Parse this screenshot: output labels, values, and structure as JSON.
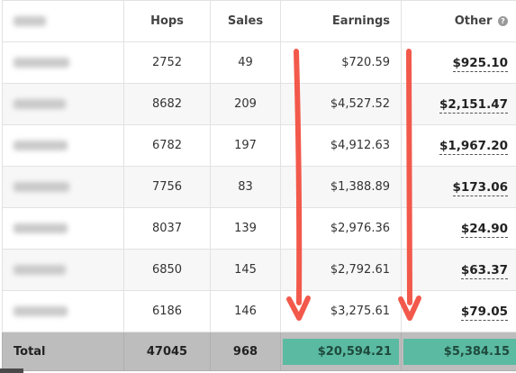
{
  "table": {
    "headers": {
      "name": "",
      "hops": "Hops",
      "sales": "Sales",
      "earnings": "Earnings",
      "other": "Other"
    },
    "rows": [
      {
        "hops": "2752",
        "sales": "49",
        "earnings": "$720.59",
        "other": "$925.10"
      },
      {
        "hops": "8682",
        "sales": "209",
        "earnings": "$4,527.52",
        "other": "$2,151.47"
      },
      {
        "hops": "6782",
        "sales": "197",
        "earnings": "$4,912.63",
        "other": "$1,967.20"
      },
      {
        "hops": "7756",
        "sales": "83",
        "earnings": "$1,388.89",
        "other": "$173.06"
      },
      {
        "hops": "8037",
        "sales": "139",
        "earnings": "$2,976.36",
        "other": "$24.90"
      },
      {
        "hops": "6850",
        "sales": "145",
        "earnings": "$2,792.61",
        "other": "$63.37"
      },
      {
        "hops": "6186",
        "sales": "146",
        "earnings": "$3,275.61",
        "other": "$79.05"
      }
    ],
    "totals": {
      "label": "Total",
      "hops": "47045",
      "sales": "968",
      "earnings": "$20,594.21",
      "other": "$5,384.15"
    }
  },
  "icons": {
    "other_help": "question-circle-icon",
    "annotation_arrows": "down-arrow-icon"
  },
  "colors": {
    "arrow": "#f2594b",
    "total_highlight": "#5bbaa2",
    "total_row_bg": "#bdbdbd",
    "alt_row_bg": "#f7f7f7"
  }
}
